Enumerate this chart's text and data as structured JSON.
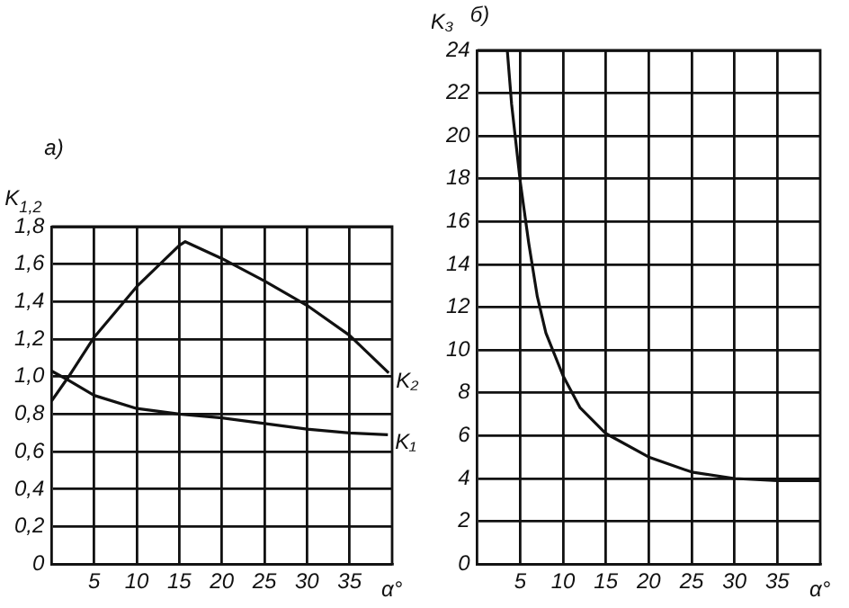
{
  "chart_data": [
    {
      "type": "line",
      "title": "а)",
      "xlabel": "α°",
      "ylabel": "K$_{1,2}$",
      "xlim": [
        0,
        40
      ],
      "ylim": [
        0,
        1.8
      ],
      "xticks": [
        5,
        10,
        15,
        20,
        25,
        30,
        35
      ],
      "yticks": [
        0,
        {
          "value": 0.2,
          "label": "0,2"
        },
        {
          "value": 0.4,
          "label": "0,4"
        },
        {
          "value": 0.6,
          "label": "0,6"
        },
        {
          "value": 0.8,
          "label": "0,8"
        },
        {
          "value": 1.0,
          "label": "1,0"
        },
        {
          "value": 1.2,
          "label": "1,2"
        },
        {
          "value": 1.4,
          "label": "1,4"
        },
        {
          "value": 1.6,
          "label": "1,6"
        },
        {
          "value": 1.8,
          "label": "1,8"
        }
      ],
      "grid": true,
      "legend": false,
      "marker": "none",
      "line_style": "solid",
      "series": [
        {
          "name": "K₂",
          "color": "#111111",
          "x": [
            0,
            2,
            5,
            10,
            15,
            15.7,
            20,
            25,
            30,
            35,
            39.6
          ],
          "values": [
            0.87,
            1.0,
            1.21,
            1.48,
            1.7,
            1.72,
            1.63,
            1.51,
            1.38,
            1.22,
            1.02
          ]
        },
        {
          "name": "K₁",
          "color": "#111111",
          "x": [
            0,
            2,
            5,
            10,
            15,
            20,
            25,
            30,
            35,
            39.5
          ],
          "values": [
            1.03,
            0.98,
            0.9,
            0.83,
            0.8,
            0.78,
            0.75,
            0.72,
            0.7,
            0.69
          ]
        }
      ]
    },
    {
      "type": "line",
      "title": "б)",
      "xlabel": "α°",
      "ylabel": "K₃",
      "xlim": [
        0,
        40
      ],
      "ylim": [
        0,
        24
      ],
      "xticks": [
        5,
        10,
        15,
        20,
        25,
        30,
        35
      ],
      "yticks": [
        0,
        2,
        4,
        6,
        8,
        10,
        12,
        14,
        16,
        18,
        20,
        22,
        24
      ],
      "grid": true,
      "legend": false,
      "marker": "none",
      "line_style": "solid",
      "series": [
        {
          "color": "#111111",
          "x": [
            3.5,
            4,
            5,
            6,
            7,
            8,
            10,
            12,
            15,
            20,
            25,
            30,
            35,
            40
          ],
          "values": [
            24,
            21.5,
            17.9,
            15,
            12.5,
            10.8,
            8.8,
            7.3,
            6.1,
            5.0,
            4.3,
            4.0,
            3.9,
            3.9
          ]
        }
      ]
    }
  ]
}
